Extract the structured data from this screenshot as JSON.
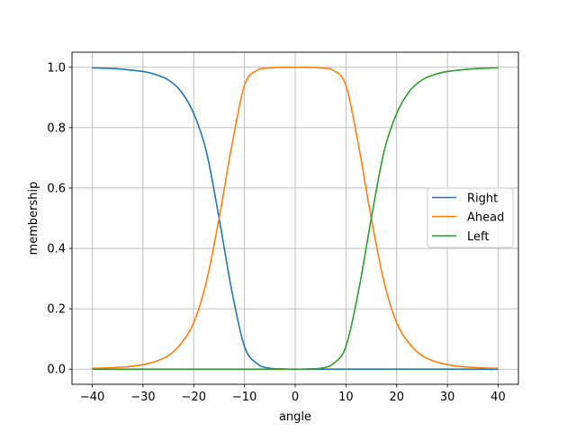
{
  "chart_data": {
    "type": "line",
    "title": "",
    "xlabel": "angle",
    "ylabel": "membership",
    "xlim": [
      -44,
      44
    ],
    "ylim": [
      -0.05,
      1.05
    ],
    "xticks": [
      -40,
      -30,
      -20,
      -10,
      0,
      10,
      20,
      30,
      40
    ],
    "xtick_labels": [
      "−40",
      "−30",
      "−20",
      "−10",
      "0",
      "10",
      "20",
      "30",
      "40"
    ],
    "yticks": [
      0.0,
      0.2,
      0.4,
      0.6,
      0.8,
      1.0
    ],
    "ytick_labels": [
      "0.0",
      "0.2",
      "0.4",
      "0.6",
      "0.8",
      "1.0"
    ],
    "grid": true,
    "legend_position": "center right",
    "x": [
      -40,
      -37.5,
      -35,
      -32.5,
      -30,
      -27.5,
      -25,
      -22.5,
      -20,
      -17.5,
      -15,
      -12.5,
      -10,
      -7.5,
      -5,
      -2.5,
      0,
      2.5,
      5,
      7.5,
      10,
      12.5,
      15,
      17.5,
      20,
      22.5,
      25,
      27.5,
      30,
      32.5,
      35,
      37.5,
      40
    ],
    "series": [
      {
        "name": "Right",
        "color": "#1f77b4",
        "values": [
          0.998,
          0.997,
          0.995,
          0.991,
          0.986,
          0.976,
          0.958,
          0.92,
          0.847,
          0.72,
          0.5,
          0.26,
          0.075,
          0.018,
          0.003,
          0.001,
          0,
          0,
          0,
          0,
          0,
          0,
          0,
          0,
          0,
          0,
          0,
          0,
          0,
          0,
          0,
          0,
          0
        ]
      },
      {
        "name": "Ahead",
        "color": "#ff7f0e",
        "values": [
          0.003,
          0.004,
          0.006,
          0.009,
          0.015,
          0.026,
          0.045,
          0.085,
          0.154,
          0.29,
          0.5,
          0.74,
          0.94,
          0.99,
          0.998,
          1.0,
          1.0,
          1.0,
          0.998,
          0.99,
          0.94,
          0.74,
          0.5,
          0.29,
          0.154,
          0.085,
          0.045,
          0.026,
          0.015,
          0.009,
          0.006,
          0.004,
          0.003
        ]
      },
      {
        "name": "Left",
        "color": "#2ca02c",
        "values": [
          0,
          0,
          0,
          0,
          0,
          0,
          0,
          0,
          0,
          0,
          0,
          0,
          0,
          0,
          0,
          0,
          0,
          0.001,
          0.003,
          0.018,
          0.075,
          0.26,
          0.5,
          0.72,
          0.847,
          0.92,
          0.958,
          0.976,
          0.986,
          0.991,
          0.995,
          0.997,
          0.998
        ]
      }
    ]
  },
  "style": {
    "grid_color": "#b0b0b0",
    "axes_color": "#000000",
    "legend_border": "#cccccc"
  }
}
